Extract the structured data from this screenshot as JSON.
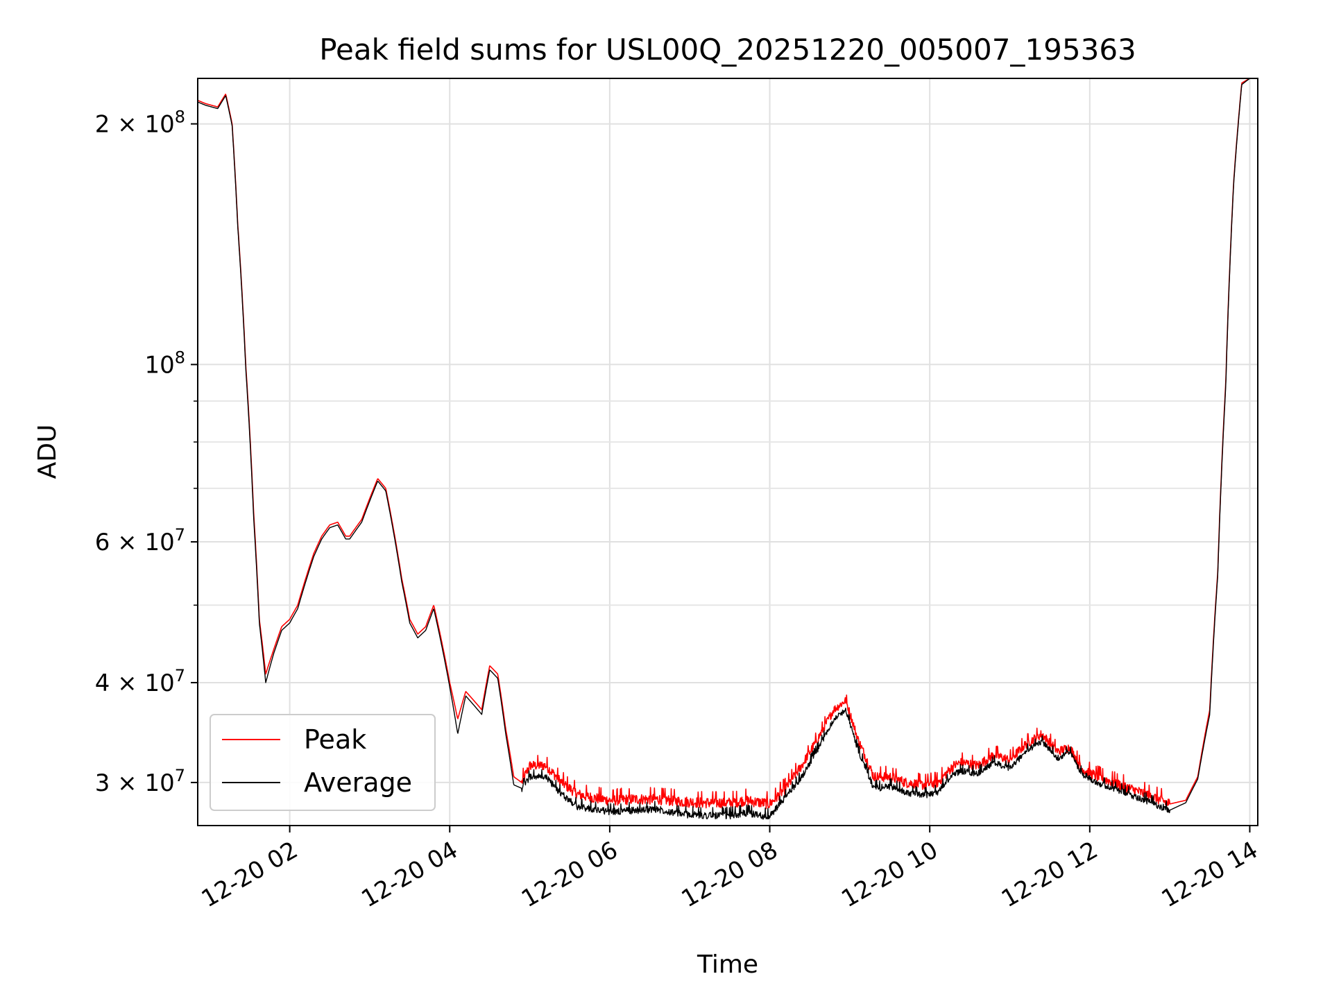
{
  "chart_data": {
    "type": "line",
    "title": "Peak field sums for USL00Q_20251220_005007_195363",
    "xlabel": "Time",
    "ylabel": "ADU",
    "y_scale": "log",
    "ylim": [
      26500000,
      228000000
    ],
    "xlim_hours": [
      0.85,
      14.1
    ],
    "grid": true,
    "legend_placement": "lower-left",
    "x_ticks": [
      {
        "value": 2,
        "label": "12-20 02"
      },
      {
        "value": 4,
        "label": "12-20 04"
      },
      {
        "value": 6,
        "label": "12-20 06"
      },
      {
        "value": 8,
        "label": "12-20 08"
      },
      {
        "value": 10,
        "label": "12-20 10"
      },
      {
        "value": 12,
        "label": "12-20 12"
      },
      {
        "value": 14,
        "label": "12-20 14"
      }
    ],
    "y_major_ticks": [
      {
        "value": 30000000,
        "mantissa": "3",
        "exponent": "7"
      },
      {
        "value": 40000000,
        "mantissa": "4",
        "exponent": "7"
      },
      {
        "value": 60000000,
        "mantissa": "6",
        "exponent": "7"
      },
      {
        "value": 100000000,
        "mantissa": "",
        "exponent": "8"
      },
      {
        "value": 200000000,
        "mantissa": "2",
        "exponent": "8"
      }
    ],
    "y_minor_ticks": [
      50000000,
      70000000,
      80000000,
      90000000
    ],
    "series": [
      {
        "name": "Peak",
        "color": "#ff0000",
        "noise": 900000,
        "x": [
          0.85,
          0.95,
          1.1,
          1.2,
          1.28,
          1.35,
          1.45,
          1.55,
          1.62,
          1.7,
          1.8,
          1.9,
          2.0,
          2.1,
          2.2,
          2.3,
          2.4,
          2.5,
          2.6,
          2.7,
          2.75,
          2.8,
          2.9,
          3.0,
          3.1,
          3.2,
          3.3,
          3.4,
          3.5,
          3.6,
          3.7,
          3.8,
          3.9,
          4.0,
          4.1,
          4.2,
          4.3,
          4.4,
          4.5,
          4.6,
          4.7,
          4.8,
          4.9,
          5.0,
          5.2,
          5.4,
          5.6,
          5.8,
          6.0,
          6.3,
          6.6,
          6.9,
          7.2,
          7.5,
          7.7,
          8.0,
          8.2,
          8.4,
          8.6,
          8.8,
          8.95,
          9.1,
          9.3,
          9.5,
          9.7,
          9.9,
          10.1,
          10.3,
          10.4,
          10.6,
          10.8,
          11.0,
          11.2,
          11.4,
          11.6,
          11.75,
          11.9,
          12.1,
          12.3,
          12.5,
          12.7,
          12.9,
          13.0,
          13.2,
          13.35,
          13.5,
          13.6,
          13.7,
          13.8,
          13.9,
          14.0
        ],
        "y": [
          214000000,
          212000000,
          210000000,
          218000000,
          200000000,
          150000000,
          100000000,
          65000000,
          48000000,
          41000000,
          44000000,
          47000000,
          48000000,
          50000000,
          54000000,
          58000000,
          61000000,
          63000000,
          63500000,
          61000000,
          61000000,
          62000000,
          64000000,
          68000000,
          72000000,
          70000000,
          62000000,
          54000000,
          48000000,
          46000000,
          47000000,
          50000000,
          45000000,
          40000000,
          36000000,
          39000000,
          38000000,
          37000000,
          42000000,
          41000000,
          35000000,
          30500000,
          30000000,
          31500000,
          31500000,
          30000000,
          29000000,
          28700000,
          28500000,
          28600000,
          28600000,
          28400000,
          28300000,
          28300000,
          28500000,
          28200000,
          29500000,
          31500000,
          34000000,
          37000000,
          38000000,
          34000000,
          30500000,
          30500000,
          30000000,
          29800000,
          30000000,
          31500000,
          31800000,
          31500000,
          32500000,
          32000000,
          33500000,
          34500000,
          32800000,
          33200000,
          31200000,
          30500000,
          30000000,
          29500000,
          29000000,
          28500000,
          28200000,
          28500000,
          30500000,
          37000000,
          55000000,
          95000000,
          170000000,
          225000000,
          228000000
        ]
      },
      {
        "name": "Average",
        "color": "#000000",
        "noise": 600000,
        "x": [
          0.85,
          0.95,
          1.1,
          1.2,
          1.28,
          1.35,
          1.45,
          1.55,
          1.62,
          1.7,
          1.8,
          1.9,
          2.0,
          2.1,
          2.2,
          2.3,
          2.4,
          2.5,
          2.6,
          2.7,
          2.75,
          2.8,
          2.9,
          3.0,
          3.1,
          3.2,
          3.3,
          3.4,
          3.5,
          3.6,
          3.7,
          3.8,
          3.9,
          4.0,
          4.1,
          4.2,
          4.3,
          4.4,
          4.5,
          4.6,
          4.7,
          4.8,
          4.9,
          5.0,
          5.2,
          5.4,
          5.6,
          5.8,
          6.0,
          6.3,
          6.6,
          6.9,
          7.2,
          7.5,
          7.7,
          8.0,
          8.2,
          8.4,
          8.6,
          8.8,
          8.95,
          9.1,
          9.3,
          9.5,
          9.7,
          9.9,
          10.1,
          10.3,
          10.4,
          10.6,
          10.8,
          11.0,
          11.2,
          11.4,
          11.6,
          11.75,
          11.9,
          12.1,
          12.3,
          12.5,
          12.7,
          12.9,
          13.0,
          13.2,
          13.35,
          13.5,
          13.6,
          13.7,
          13.8,
          13.9,
          14.0
        ],
        "y": [
          213000000,
          211000000,
          209000000,
          217000000,
          199000000,
          149000000,
          99000000,
          64000000,
          47500000,
          40000000,
          43500000,
          46500000,
          47500000,
          49500000,
          53500000,
          57500000,
          60500000,
          62500000,
          63000000,
          60500000,
          60500000,
          61500000,
          63500000,
          67500000,
          71500000,
          69500000,
          61500000,
          53500000,
          47500000,
          45500000,
          46500000,
          49500000,
          44500000,
          39500000,
          34500000,
          38500000,
          37500000,
          36500000,
          41500000,
          40500000,
          34500000,
          29800000,
          29500000,
          30500000,
          30500000,
          29000000,
          28000000,
          27800000,
          27600000,
          27700000,
          27800000,
          27400000,
          27300000,
          27300000,
          27500000,
          27200000,
          28800000,
          30500000,
          33000000,
          36000000,
          37000000,
          33000000,
          29500000,
          29700000,
          29200000,
          28900000,
          29200000,
          30800000,
          31000000,
          30800000,
          31800000,
          31200000,
          32800000,
          33800000,
          32200000,
          32800000,
          30800000,
          30000000,
          29500000,
          29000000,
          28500000,
          28000000,
          27700000,
          28300000,
          30300000,
          36500000,
          54500000,
          94000000,
          169000000,
          224000000,
          228000000
        ]
      }
    ]
  }
}
